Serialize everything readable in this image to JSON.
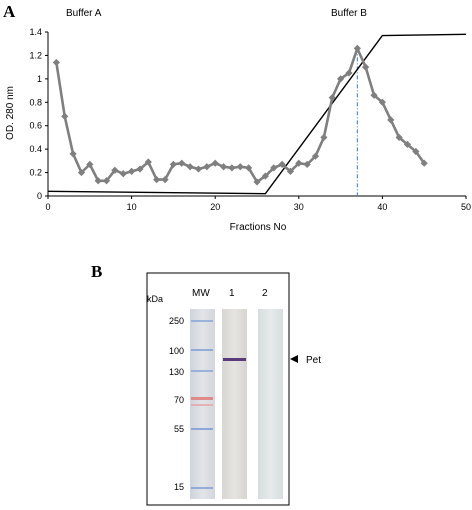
{
  "panel_a": {
    "letter": "A",
    "buffer_a_label": "Buffer A",
    "buffer_b_label": "Buffer  B"
  },
  "panel_b": {
    "letter": "B",
    "kda_label": "kDa",
    "lane_labels": [
      "MW",
      "1",
      "2"
    ],
    "mw_markers": [
      "250",
      "100",
      "130",
      "70",
      "55",
      "15"
    ],
    "band_label": "Pet"
  },
  "chart_data": {
    "type": "line",
    "title": "",
    "xlabel": "Fractions No",
    "ylabel": "OD.  280 nm",
    "xlim": [
      0,
      50
    ],
    "ylim": [
      0,
      1.4
    ],
    "xticks": [
      0,
      10,
      20,
      30,
      40,
      50
    ],
    "yticks": [
      0,
      0.2,
      0.4,
      0.6,
      0.8,
      1,
      1.2,
      1.4
    ],
    "grid": false,
    "series": [
      {
        "x": [
          1,
          2,
          3,
          4,
          5,
          6,
          7,
          8,
          9,
          10,
          11,
          12,
          13,
          14,
          15,
          16,
          17,
          18,
          19,
          20,
          21,
          22,
          23,
          24,
          25,
          26,
          27,
          28,
          29,
          30,
          31,
          32,
          33,
          34,
          35,
          36,
          37,
          38,
          39,
          40,
          41,
          42,
          43,
          44,
          45
        ],
        "values": [
          1.14,
          0.68,
          0.36,
          0.2,
          0.27,
          0.13,
          0.13,
          0.22,
          0.19,
          0.21,
          0.23,
          0.29,
          0.14,
          0.14,
          0.27,
          0.28,
          0.25,
          0.23,
          0.25,
          0.28,
          0.25,
          0.24,
          0.25,
          0.24,
          0.12,
          0.17,
          0.24,
          0.27,
          0.21,
          0.28,
          0.27,
          0.34,
          0.5,
          0.84,
          1.0,
          1.05,
          1.26,
          1.1,
          0.86,
          0.8,
          0.65,
          0.5,
          0.44,
          0.38,
          0.28
        ],
        "color": "#7f7f7f",
        "marker": "diamond"
      },
      {
        "x": [
          0,
          26,
          40,
          50
        ],
        "values": [
          0.04,
          0.02,
          1.37,
          1.38
        ],
        "color": "#000000",
        "marker": "none"
      }
    ],
    "annotations": [
      {
        "type": "vertical-dashed-line",
        "x": 37,
        "y_top": 1.26,
        "color": "#3a78b8"
      }
    ]
  }
}
